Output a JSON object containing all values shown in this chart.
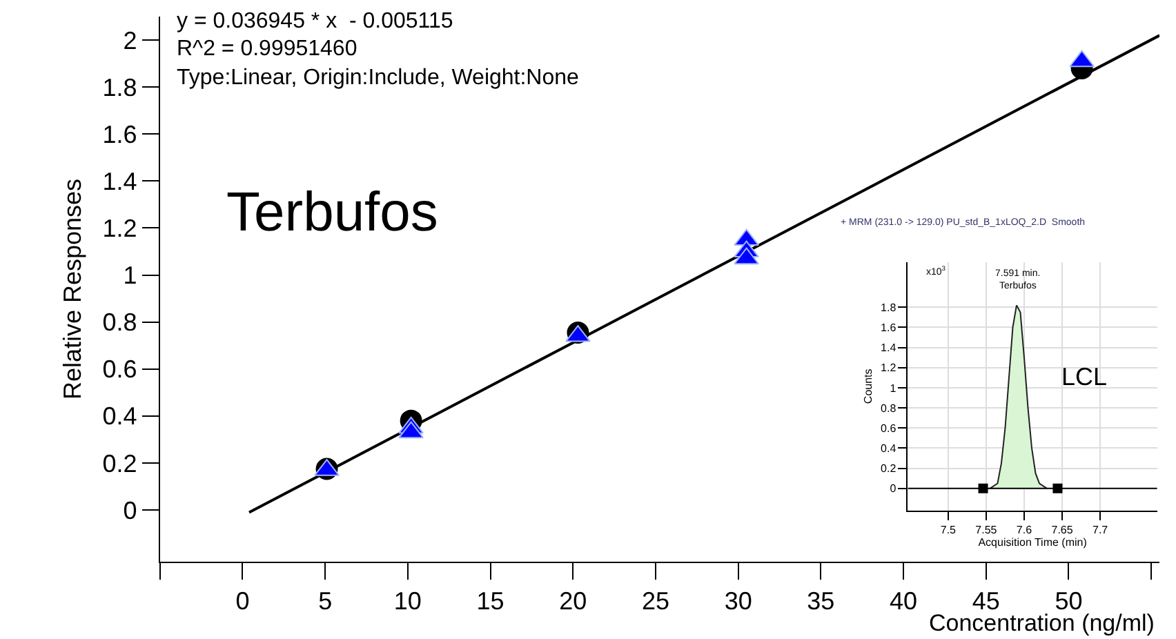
{
  "chart_data": [
    {
      "type": "scatter",
      "xlabel": "Concentration (ng/ml)",
      "ylabel": "Relative Responses",
      "annotations": [
        "y = 0.036945 * x  - 0.005115",
        "R^2 = 0.99951460",
        "Type:Linear, Origin:Include, Weight:None",
        "Terbufos"
      ],
      "series": [
        {
          "type": "line",
          "color": "#000000",
          "marker": "none",
          "x": [
            0.4,
            55.5
          ],
          "values": [
            -0.01,
            2.02
          ]
        },
        {
          "color": "#000000",
          "marker": "circle",
          "x": [
            5.1,
            10.2,
            20.3,
            50.8
          ],
          "values": [
            0.175,
            0.38,
            0.755,
            1.88
          ]
        },
        {
          "color": "#0000ff",
          "marker": "triangle",
          "x": [
            5.1,
            10.2,
            10.2,
            20.3,
            30.5,
            30.5,
            30.5,
            50.8
          ],
          "values": [
            0.17,
            0.35,
            0.33,
            0.74,
            1.15,
            1.1,
            1.07,
            1.91
          ]
        }
      ],
      "xlim": [
        -5,
        55.5
      ],
      "ylim": [
        -0.22,
        2.1
      ],
      "xticks": [
        {
          "value": -5,
          "label": null
        },
        0,
        5,
        10,
        15,
        20,
        25,
        30,
        35,
        40,
        45,
        50,
        {
          "value": 55,
          "label": null
        }
      ],
      "yticks": [
        0,
        0.2,
        0.4,
        0.6,
        0.8,
        1,
        1.2,
        1.4,
        1.6,
        1.8,
        2
      ],
      "grid": false
    },
    {
      "type": "area",
      "title": "+ MRM (231.0 -> 129.0) PU_std_B_1xLOQ_2.D  Smooth",
      "xlabel": "Acquisition Time (min)",
      "ylabel": "Counts",
      "annotations": [
        "x10$^{3}$",
        {
          "text": "7.591 min.",
          "x": 7.591,
          "y": 1.82
        },
        {
          "text": "Terbufos",
          "x": 7.591,
          "y": 1.82
        },
        "LCL"
      ],
      "series": [
        {
          "color": "#d9f5d3",
          "x": [
            7.555,
            7.565,
            7.57,
            7.575,
            7.58,
            7.585,
            7.59,
            7.595,
            7.6,
            7.605,
            7.61,
            7.615,
            7.62,
            7.63
          ],
          "values": [
            0,
            0.05,
            0.25,
            0.6,
            1.1,
            1.6,
            1.82,
            1.75,
            1.3,
            0.8,
            0.4,
            0.15,
            0.05,
            0
          ]
        },
        {
          "type": "scatter",
          "color": "#000000",
          "marker": "square",
          "x": [
            7.546,
            7.644
          ],
          "values": [
            0,
            0
          ]
        }
      ],
      "ref_lines": [
        {
          "axis": "y",
          "value": 0,
          "color": "#000000"
        }
      ],
      "xlim": [
        7.447,
        7.775
      ],
      "ylim": [
        -0.22,
        2.25
      ],
      "xticks": [
        7.5,
        7.55,
        7.6,
        7.65,
        7.7
      ],
      "yticks": [
        0,
        0.2,
        0.4,
        0.6,
        0.8,
        1,
        1.2,
        1.4,
        1.6,
        1.8
      ],
      "grid": true
    }
  ]
}
